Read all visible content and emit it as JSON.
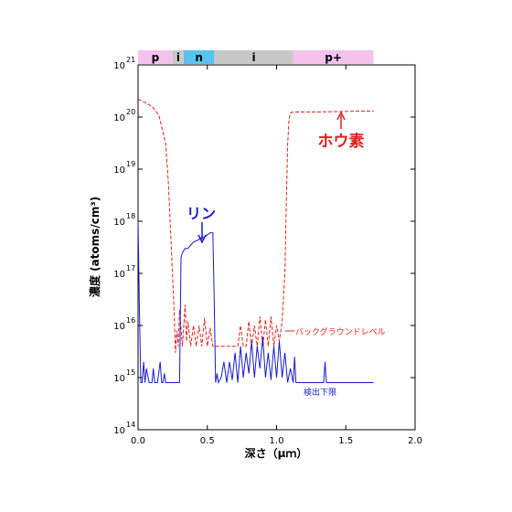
{
  "colors": {
    "boron": "#e02020",
    "phosphorus": "#1a1acd",
    "layer_p": "#f4c2ec",
    "layer_i": "#c8c8c8",
    "layer_n": "#59c3ec",
    "layer_p_plus": "#f4c2ec"
  },
  "chart_data": {
    "type": "line",
    "xlabel": "深さ（μｍ）",
    "ylabel": "濃度 (atoms/cm³)",
    "xlim": [
      0.0,
      2.0
    ],
    "ylim": [
      100000000000000.0,
      1e+21
    ],
    "yscale": "log",
    "grid": false,
    "legend": "none",
    "x_ticks": [
      "0.0",
      "0.5",
      "1.0",
      "1.5",
      "2.0"
    ],
    "y_ticks": [
      {
        "base": "10",
        "exp": "14"
      },
      {
        "base": "10",
        "exp": "15"
      },
      {
        "base": "10",
        "exp": "16"
      },
      {
        "base": "10",
        "exp": "17"
      },
      {
        "base": "10",
        "exp": "18"
      },
      {
        "base": "10",
        "exp": "19"
      },
      {
        "base": "10",
        "exp": "20"
      },
      {
        "base": "10",
        "exp": "21"
      }
    ],
    "layers": [
      {
        "label": "p",
        "x0": 0.0,
        "x1": 0.25,
        "color": "#f4c2ec"
      },
      {
        "label": "i",
        "x0": 0.25,
        "x1": 0.33,
        "color": "#c8c8c8"
      },
      {
        "label": "n",
        "x0": 0.33,
        "x1": 0.55,
        "color": "#59c3ec"
      },
      {
        "label": "i",
        "x0": 0.55,
        "x1": 1.12,
        "color": "#c8c8c8"
      },
      {
        "label": "p+",
        "x0": 1.12,
        "x1": 1.7,
        "color": "#f4c2ec"
      }
    ],
    "series": [
      {
        "name": "ホウ素",
        "style": "dashed",
        "color": "#e02020",
        "x": [
          0.0,
          0.05,
          0.1,
          0.15,
          0.2,
          0.22,
          0.24,
          0.26,
          0.27,
          0.28,
          0.29,
          0.3,
          0.32,
          0.34,
          0.35,
          0.36,
          0.38,
          0.4,
          0.42,
          0.44,
          0.46,
          0.48,
          0.5,
          0.52,
          0.54,
          0.56,
          0.6,
          0.65,
          0.7,
          0.72,
          0.74,
          0.76,
          0.78,
          0.8,
          0.82,
          0.84,
          0.86,
          0.88,
          0.9,
          0.92,
          0.94,
          0.96,
          0.98,
          1.0,
          1.02,
          1.04,
          1.06,
          1.07,
          1.08,
          1.09,
          1.1,
          1.12,
          1.2,
          1.3,
          1.4,
          1.5,
          1.6,
          1.7
        ],
        "y": [
          2.2e+20,
          1.9e+20,
          1.6e+20,
          1.1e+20,
          3e+19,
          5e+18,
          3e+17,
          2e+16,
          3000000000000000.0,
          8000000000000000.0,
          4000000000000000.0,
          2e+16,
          4000000000000000.0,
          2.5e+16,
          5000000000000000.0,
          1.2e+16,
          4000000000000000.0,
          1e+16,
          4000000000000000.0,
          1e+16,
          4000000000000000.0,
          1.4e+16,
          4000000000000000.0,
          9000000000000000.0,
          4000000000000000.0,
          4000000000000000.0,
          4000000000000000.0,
          4000000000000000.0,
          4000000000000000.0,
          4000000000000000.0,
          1e+16,
          4000000000000000.0,
          4000000000000000.0,
          1.2e+16,
          4000000000000000.0,
          1e+16,
          4000000000000000.0,
          1.5e+16,
          4000000000000000.0,
          1.3e+16,
          4000000000000000.0,
          1.5e+16,
          4000000000000000.0,
          1e+16,
          5000000000000000.0,
          1.2e+16,
          1e+17,
          2e+18,
          3e+19,
          9e+19,
          1.2e+20,
          1.25e+20,
          1.25e+20,
          1.25e+20,
          1.27e+20,
          1.28e+20,
          1.3e+20,
          1.3e+20
        ]
      },
      {
        "name": "リン",
        "style": "solid",
        "color": "#1a1acd",
        "x": [
          0.0,
          0.01,
          0.02,
          0.03,
          0.04,
          0.05,
          0.06,
          0.08,
          0.1,
          0.11,
          0.12,
          0.14,
          0.16,
          0.17,
          0.18,
          0.19,
          0.2,
          0.22,
          0.24,
          0.26,
          0.28,
          0.3,
          0.31,
          0.32,
          0.34,
          0.36,
          0.38,
          0.4,
          0.42,
          0.44,
          0.46,
          0.48,
          0.5,
          0.52,
          0.54,
          0.55,
          0.56,
          0.57,
          0.58,
          0.6,
          0.62,
          0.64,
          0.66,
          0.68,
          0.7,
          0.72,
          0.74,
          0.76,
          0.78,
          0.8,
          0.82,
          0.84,
          0.86,
          0.88,
          0.9,
          0.92,
          0.94,
          0.96,
          0.98,
          1.0,
          1.02,
          1.04,
          1.06,
          1.08,
          1.1,
          1.12,
          1.13,
          1.14,
          1.16,
          1.2,
          1.3,
          1.34,
          1.35,
          1.36,
          1.4,
          1.5,
          1.6,
          1.7
        ],
        "y": [
          1e+18,
          2e+16,
          800000000000000.0,
          800000000000000.0,
          2000000000000000.0,
          800000000000000.0,
          1500000000000000.0,
          800000000000000.0,
          800000000000000.0,
          1500000000000000.0,
          800000000000000.0,
          800000000000000.0,
          2000000000000000.0,
          800000000000000.0,
          800000000000000.0,
          1200000000000000.0,
          800000000000000.0,
          800000000000000.0,
          800000000000000.0,
          800000000000000.0,
          800000000000000.0,
          800000000000000.0,
          2e+17,
          2.5e+17,
          3e+17,
          3e+17,
          3.5e+17,
          4e+17,
          4.2e+17,
          4.5e+17,
          5e+17,
          5e+17,
          5.5e+17,
          6e+17,
          6e+17,
          3e+16,
          800000000000000.0,
          1200000000000000.0,
          800000000000000.0,
          1000000000000000.0,
          2000000000000000.0,
          800000000000000.0,
          2000000000000000.0,
          900000000000000.0,
          3000000000000000.0,
          800000000000000.0,
          4000000000000000.0,
          1000000000000000.0,
          3000000000000000.0,
          1200000000000000.0,
          5000000000000000.0,
          1000000000000000.0,
          4000000000000000.0,
          1500000000000000.0,
          6000000000000000.0,
          1000000000000000.0,
          3000000000000000.0,
          900000000000000.0,
          4000000000000000.0,
          1000000000000000.0,
          5000000000000000.0,
          1000000000000000.0,
          3000000000000000.0,
          800000000000000.0,
          1500000000000000.0,
          800000000000000.0,
          2500000000000000.0,
          800000000000000.0,
          800000000000000.0,
          800000000000000.0,
          800000000000000.0,
          800000000000000.0,
          2000000000000000.0,
          800000000000000.0,
          800000000000000.0,
          800000000000000.0,
          800000000000000.0,
          800000000000000.0
        ]
      }
    ],
    "annotations": {
      "boron_label": "ホウ素",
      "phosphorus_label": "リン",
      "background_level": "バックグラウンドレベル",
      "detection_limit": "検出下限"
    }
  }
}
